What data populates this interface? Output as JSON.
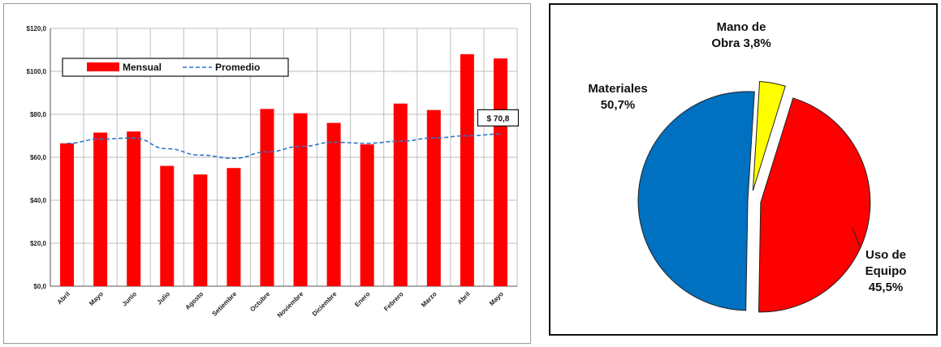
{
  "chart_data": [
    {
      "type": "bar",
      "categories": [
        "Abril",
        "Mayo",
        "Junio",
        "Julio",
        "Agosto",
        "Setiembre",
        "Octubre",
        "Noviembre",
        "Diciembre",
        "Enero",
        "Febrero",
        "Marzo",
        "Abril",
        "Mayo"
      ],
      "series": [
        {
          "name": "Mensual",
          "type": "bar",
          "color": "#ff0000",
          "values": [
            66.5,
            71.5,
            72.0,
            56.0,
            52.0,
            55.0,
            82.5,
            80.5,
            76.0,
            66.0,
            85.0,
            82.0,
            108.0,
            106.0
          ]
        },
        {
          "name": "Promedio",
          "type": "line",
          "style": "dashed",
          "color": "#2e75c8",
          "values": [
            66.5,
            68.5,
            69.0,
            64.0,
            61.0,
            59.5,
            62.5,
            65.0,
            67.0,
            66.5,
            67.5,
            69.0,
            70.0,
            70.8
          ]
        }
      ],
      "ylim": [
        0,
        120
      ],
      "yticks": [
        "$0,0",
        "$20,0",
        "$40,0",
        "$60,0",
        "$80,0",
        "$100,0",
        "$120,0"
      ],
      "grid": true,
      "legend_position": "top-left",
      "callout": "$ 70,8"
    },
    {
      "type": "pie",
      "slices": [
        {
          "label_lines": [
            "Materiales",
            "50,7%"
          ],
          "value": 50.7,
          "color": "#0070c0"
        },
        {
          "label_lines": [
            "Mano de",
            "Obra  3,8%"
          ],
          "value": 3.8,
          "color": "#ffff00"
        },
        {
          "label_lines": [
            "Uso de",
            "Equipo",
            "45,5%"
          ],
          "value": 45.5,
          "color": "#ff0000"
        }
      ]
    }
  ]
}
